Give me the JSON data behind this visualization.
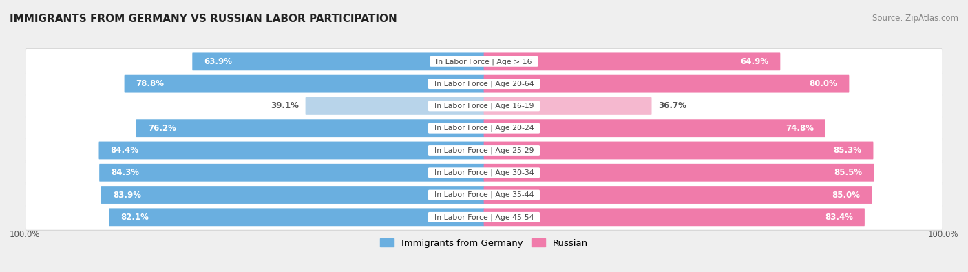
{
  "title": "IMMIGRANTS FROM GERMANY VS RUSSIAN LABOR PARTICIPATION",
  "source": "Source: ZipAtlas.com",
  "categories": [
    "In Labor Force | Age > 16",
    "In Labor Force | Age 20-64",
    "In Labor Force | Age 16-19",
    "In Labor Force | Age 20-24",
    "In Labor Force | Age 25-29",
    "In Labor Force | Age 30-34",
    "In Labor Force | Age 35-44",
    "In Labor Force | Age 45-54"
  ],
  "germany_values": [
    63.9,
    78.8,
    39.1,
    76.2,
    84.4,
    84.3,
    83.9,
    82.1
  ],
  "russian_values": [
    64.9,
    80.0,
    36.7,
    74.8,
    85.3,
    85.5,
    85.0,
    83.4
  ],
  "germany_color_high": "#6aafe0",
  "germany_color_low": "#b8d4ea",
  "russian_color_high": "#f07baa",
  "russian_color_low": "#f5b8cf",
  "bg_color": "#efefef",
  "row_bg_color": "#ffffff",
  "row_bg_shadow": "#d8d8d8",
  "label_white": "#ffffff",
  "label_dark": "#555555",
  "center_label_color": "#444444",
  "title_color": "#222222",
  "source_color": "#888888",
  "bottom_label_color": "#555555",
  "legend_germany": "Immigrants from Germany",
  "legend_russian": "Russian",
  "threshold_white_label": 50.0,
  "max_value": 100.0
}
